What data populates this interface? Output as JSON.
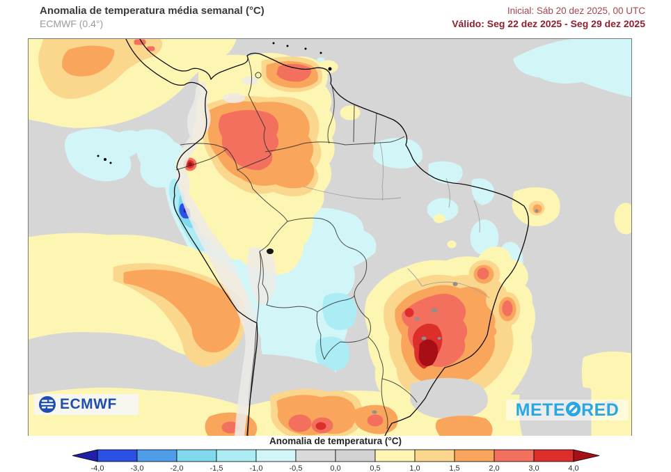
{
  "header": {
    "title": "Anomalia de temperatura média semanal (°C)",
    "subtitle": "ECMWF (0.4°)",
    "init_label": "Inicial: Sáb 20 dez 2025, 00 UTC",
    "valid_label": "Válido: Seg 22 dez 2025 - Seg 29 dez 2025"
  },
  "legend": {
    "title": "Anomalia de temperatura (°C)",
    "ticks": [
      "-4,0",
      "-3,0",
      "-2,0",
      "-1,5",
      "-1,0",
      "-0,5",
      "0,0",
      "0,5",
      "1,0",
      "1,5",
      "2,0",
      "3,0",
      "4,0"
    ],
    "colors": [
      "#2b50e3",
      "#4f9ce8",
      "#7fd9ef",
      "#abecf5",
      "#d2f6f8",
      "#dadada",
      "#d2d2d2",
      "#fdf6b3",
      "#fbd78e",
      "#f9a65c",
      "#f3705f",
      "#dc2f2b"
    ],
    "arrow_left": "#2020ab",
    "arrow_right": "#a50f15"
  },
  "map": {
    "ocean_color": "#d6d6d6",
    "frame_color": "#777777",
    "region": "South America temperature anomaly field"
  },
  "logos": {
    "ecmwf": "ECMWF",
    "meteored_left": "METE",
    "meteored_right": "RED"
  },
  "brand_colors": {
    "ecmwf_blue": "#1f4fae",
    "meteored_blue": "#29a7e0"
  }
}
